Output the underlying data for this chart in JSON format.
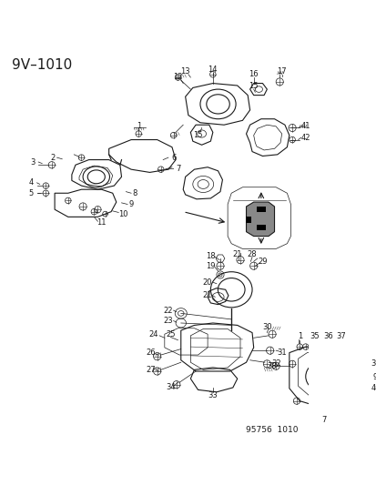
{
  "title": "9V–1010",
  "footer": "95756  1010",
  "bg_color": "#ffffff",
  "line_color": "#1a1a1a",
  "title_fontsize": 11,
  "footer_fontsize": 6.5,
  "label_fontsize": 6.0
}
